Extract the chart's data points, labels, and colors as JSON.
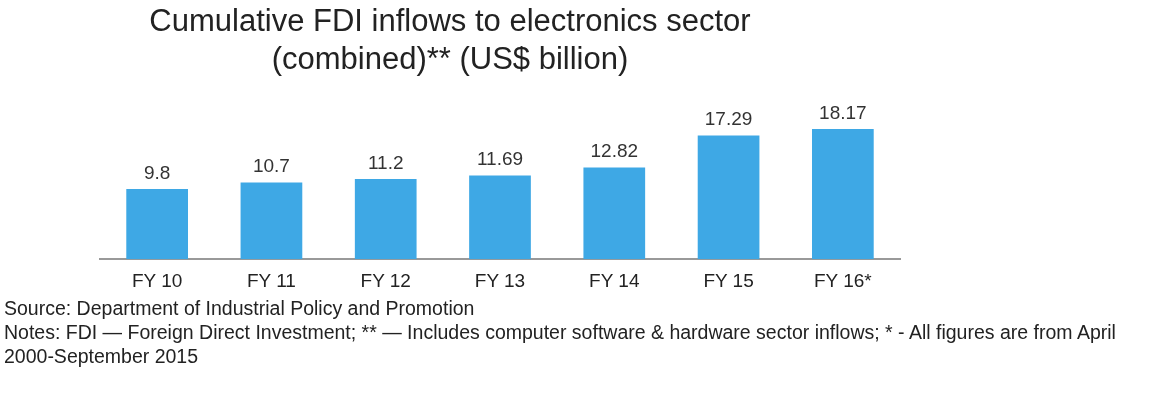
{
  "chart_data": {
    "type": "bar",
    "title": "Cumulative FDI inflows to electronics sector (combined)** (US$ billion)",
    "categories": [
      "FY 10",
      "FY 11",
      "FY 12",
      "FY 13",
      "FY 14",
      "FY 15",
      "FY 16*"
    ],
    "values": [
      9.8,
      10.7,
      11.2,
      11.69,
      12.82,
      17.29,
      18.17
    ],
    "color": "#3ea8e5",
    "data_labels": true,
    "grid": false,
    "legend": false,
    "annotations": [
      "Source: Department of Industrial Policy and Promotion",
      "Notes: FDI — Foreign Direct Investment; ** — Includes computer software & hardware sector inflows; * - All figures are from April 2000-September 2015"
    ]
  }
}
